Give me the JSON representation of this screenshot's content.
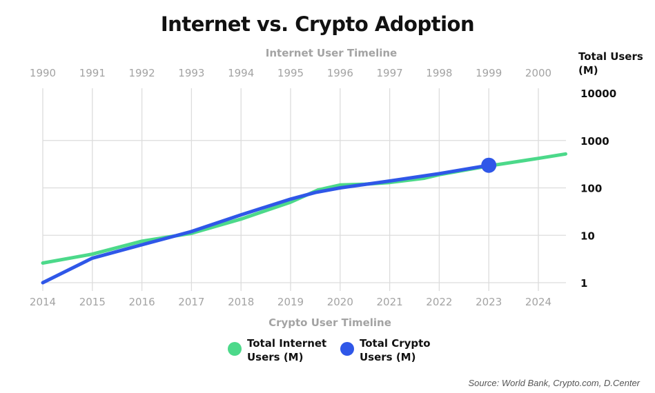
{
  "chart_data": {
    "type": "line",
    "title": "Internet vs. Crypto Adoption",
    "top_axis_label": "Internet User Timeline",
    "bottom_axis_label": "Crypto User Timeline",
    "ylabel": "Total Users (M)",
    "yscale": "log",
    "ylim": [
      1,
      10000
    ],
    "yticks": [
      {
        "value": 10000,
        "label": "10000"
      },
      {
        "value": 1000,
        "label": "1000"
      },
      {
        "value": 100,
        "label": "100"
      },
      {
        "value": 10,
        "label": "10"
      },
      {
        "value": 1,
        "label": "1"
      }
    ],
    "top_x_ticks": [
      "1990",
      "1991",
      "1992",
      "1993",
      "1994",
      "1995",
      "1996",
      "1997",
      "1998",
      "1999",
      "2000"
    ],
    "bottom_x_ticks": [
      "2014",
      "2015",
      "2016",
      "2017",
      "2018",
      "2019",
      "2020",
      "2021",
      "2022",
      "2023",
      "2024"
    ],
    "grid": true,
    "series": [
      {
        "name": "Total Internet Users (M)",
        "color": "#4cd98a",
        "axis": "top",
        "x": [
          1990,
          1991,
          1992,
          1993,
          1994,
          1995,
          1995.55,
          1996,
          1996.5,
          1997,
          1997.7,
          1998,
          1999,
          2000,
          2000.55
        ],
        "y": [
          2.6,
          4.0,
          7.5,
          11,
          22,
          50,
          90,
          115,
          120,
          130,
          160,
          190,
          290,
          420,
          520
        ]
      },
      {
        "name": "Total Crypto Users (M)",
        "color": "#2f57e8",
        "axis": "bottom",
        "x": [
          2014,
          2015,
          2016,
          2017,
          2018,
          2019,
          2019.5,
          2020,
          2021,
          2022,
          2023
        ],
        "y": [
          1.0,
          3.3,
          6.3,
          12,
          27,
          58,
          80,
          100,
          140,
          200,
          300
        ],
        "highlight": {
          "x": 2023,
          "y": 300
        }
      }
    ]
  },
  "legend": [
    {
      "label": "Total Internet Users (M)",
      "color": "#4cd98a"
    },
    {
      "label": "Total Crypto Users (M)",
      "color": "#2f57e8"
    }
  ],
  "source": "Source: World Bank, Crypto.com, D.Center"
}
